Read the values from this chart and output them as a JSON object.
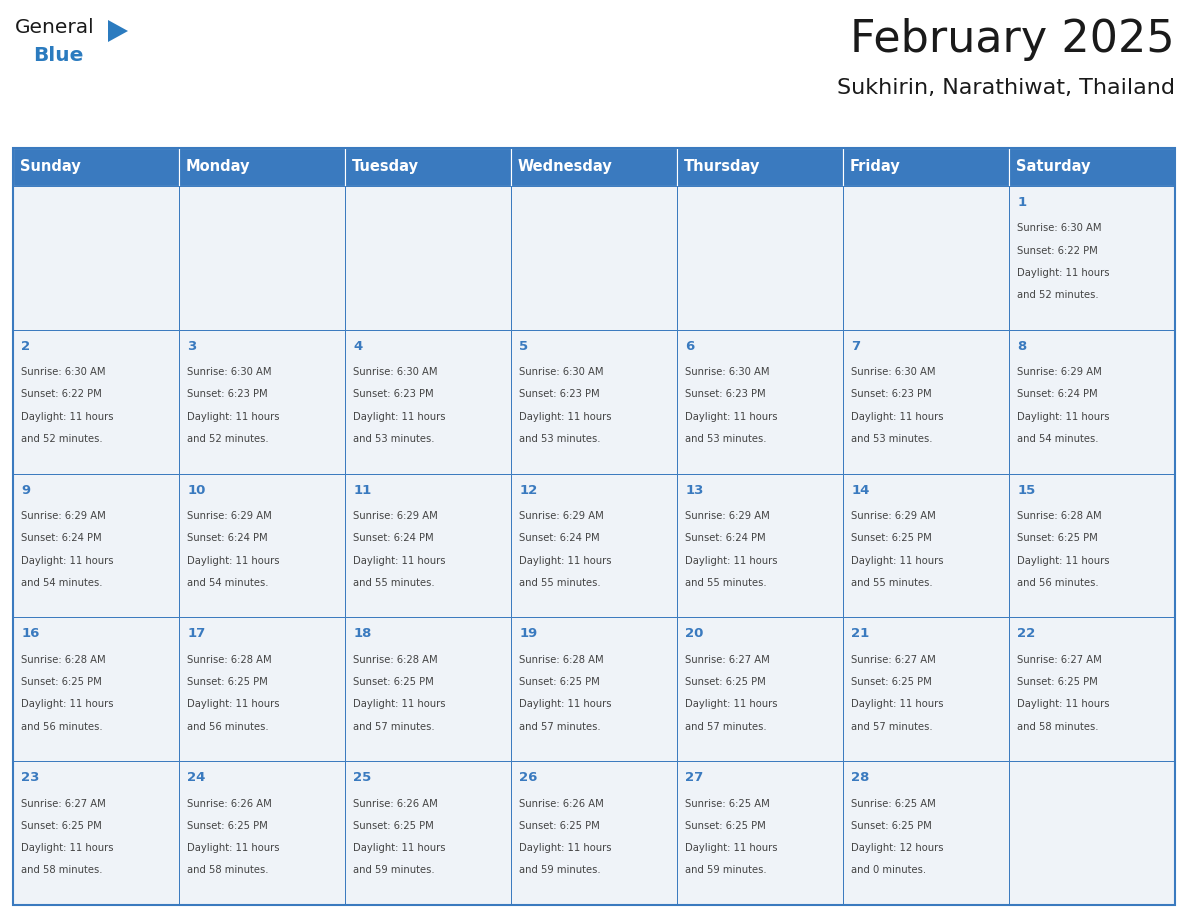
{
  "title": "February 2025",
  "subtitle": "Sukhirin, Narathiwat, Thailand",
  "days_of_week": [
    "Sunday",
    "Monday",
    "Tuesday",
    "Wednesday",
    "Thursday",
    "Friday",
    "Saturday"
  ],
  "header_bg": "#3a7abf",
  "header_text": "#ffffff",
  "cell_bg": "#eff3f8",
  "cell_bg_white": "#ffffff",
  "border_color": "#3a7abf",
  "day_num_color": "#3a7abf",
  "text_color": "#444444",
  "logo_general_color": "#1a1a1a",
  "logo_blue_color": "#2b7bbf",
  "calendar_data": [
    [
      {
        "day": null,
        "sunrise": null,
        "sunset": null,
        "daylight": null
      },
      {
        "day": null,
        "sunrise": null,
        "sunset": null,
        "daylight": null
      },
      {
        "day": null,
        "sunrise": null,
        "sunset": null,
        "daylight": null
      },
      {
        "day": null,
        "sunrise": null,
        "sunset": null,
        "daylight": null
      },
      {
        "day": null,
        "sunrise": null,
        "sunset": null,
        "daylight": null
      },
      {
        "day": null,
        "sunrise": null,
        "sunset": null,
        "daylight": null
      },
      {
        "day": 1,
        "sunrise": "6:30 AM",
        "sunset": "6:22 PM",
        "daylight": "11 hours and 52 minutes."
      }
    ],
    [
      {
        "day": 2,
        "sunrise": "6:30 AM",
        "sunset": "6:22 PM",
        "daylight": "11 hours and 52 minutes."
      },
      {
        "day": 3,
        "sunrise": "6:30 AM",
        "sunset": "6:23 PM",
        "daylight": "11 hours and 52 minutes."
      },
      {
        "day": 4,
        "sunrise": "6:30 AM",
        "sunset": "6:23 PM",
        "daylight": "11 hours and 53 minutes."
      },
      {
        "day": 5,
        "sunrise": "6:30 AM",
        "sunset": "6:23 PM",
        "daylight": "11 hours and 53 minutes."
      },
      {
        "day": 6,
        "sunrise": "6:30 AM",
        "sunset": "6:23 PM",
        "daylight": "11 hours and 53 minutes."
      },
      {
        "day": 7,
        "sunrise": "6:30 AM",
        "sunset": "6:23 PM",
        "daylight": "11 hours and 53 minutes."
      },
      {
        "day": 8,
        "sunrise": "6:29 AM",
        "sunset": "6:24 PM",
        "daylight": "11 hours and 54 minutes."
      }
    ],
    [
      {
        "day": 9,
        "sunrise": "6:29 AM",
        "sunset": "6:24 PM",
        "daylight": "11 hours and 54 minutes."
      },
      {
        "day": 10,
        "sunrise": "6:29 AM",
        "sunset": "6:24 PM",
        "daylight": "11 hours and 54 minutes."
      },
      {
        "day": 11,
        "sunrise": "6:29 AM",
        "sunset": "6:24 PM",
        "daylight": "11 hours and 55 minutes."
      },
      {
        "day": 12,
        "sunrise": "6:29 AM",
        "sunset": "6:24 PM",
        "daylight": "11 hours and 55 minutes."
      },
      {
        "day": 13,
        "sunrise": "6:29 AM",
        "sunset": "6:24 PM",
        "daylight": "11 hours and 55 minutes."
      },
      {
        "day": 14,
        "sunrise": "6:29 AM",
        "sunset": "6:25 PM",
        "daylight": "11 hours and 55 minutes."
      },
      {
        "day": 15,
        "sunrise": "6:28 AM",
        "sunset": "6:25 PM",
        "daylight": "11 hours and 56 minutes."
      }
    ],
    [
      {
        "day": 16,
        "sunrise": "6:28 AM",
        "sunset": "6:25 PM",
        "daylight": "11 hours and 56 minutes."
      },
      {
        "day": 17,
        "sunrise": "6:28 AM",
        "sunset": "6:25 PM",
        "daylight": "11 hours and 56 minutes."
      },
      {
        "day": 18,
        "sunrise": "6:28 AM",
        "sunset": "6:25 PM",
        "daylight": "11 hours and 57 minutes."
      },
      {
        "day": 19,
        "sunrise": "6:28 AM",
        "sunset": "6:25 PM",
        "daylight": "11 hours and 57 minutes."
      },
      {
        "day": 20,
        "sunrise": "6:27 AM",
        "sunset": "6:25 PM",
        "daylight": "11 hours and 57 minutes."
      },
      {
        "day": 21,
        "sunrise": "6:27 AM",
        "sunset": "6:25 PM",
        "daylight": "11 hours and 57 minutes."
      },
      {
        "day": 22,
        "sunrise": "6:27 AM",
        "sunset": "6:25 PM",
        "daylight": "11 hours and 58 minutes."
      }
    ],
    [
      {
        "day": 23,
        "sunrise": "6:27 AM",
        "sunset": "6:25 PM",
        "daylight": "11 hours and 58 minutes."
      },
      {
        "day": 24,
        "sunrise": "6:26 AM",
        "sunset": "6:25 PM",
        "daylight": "11 hours and 58 minutes."
      },
      {
        "day": 25,
        "sunrise": "6:26 AM",
        "sunset": "6:25 PM",
        "daylight": "11 hours and 59 minutes."
      },
      {
        "day": 26,
        "sunrise": "6:26 AM",
        "sunset": "6:25 PM",
        "daylight": "11 hours and 59 minutes."
      },
      {
        "day": 27,
        "sunrise": "6:25 AM",
        "sunset": "6:25 PM",
        "daylight": "11 hours and 59 minutes."
      },
      {
        "day": 28,
        "sunrise": "6:25 AM",
        "sunset": "6:25 PM",
        "daylight": "12 hours and 0 minutes."
      },
      {
        "day": null,
        "sunrise": null,
        "sunset": null,
        "daylight": null
      }
    ]
  ]
}
